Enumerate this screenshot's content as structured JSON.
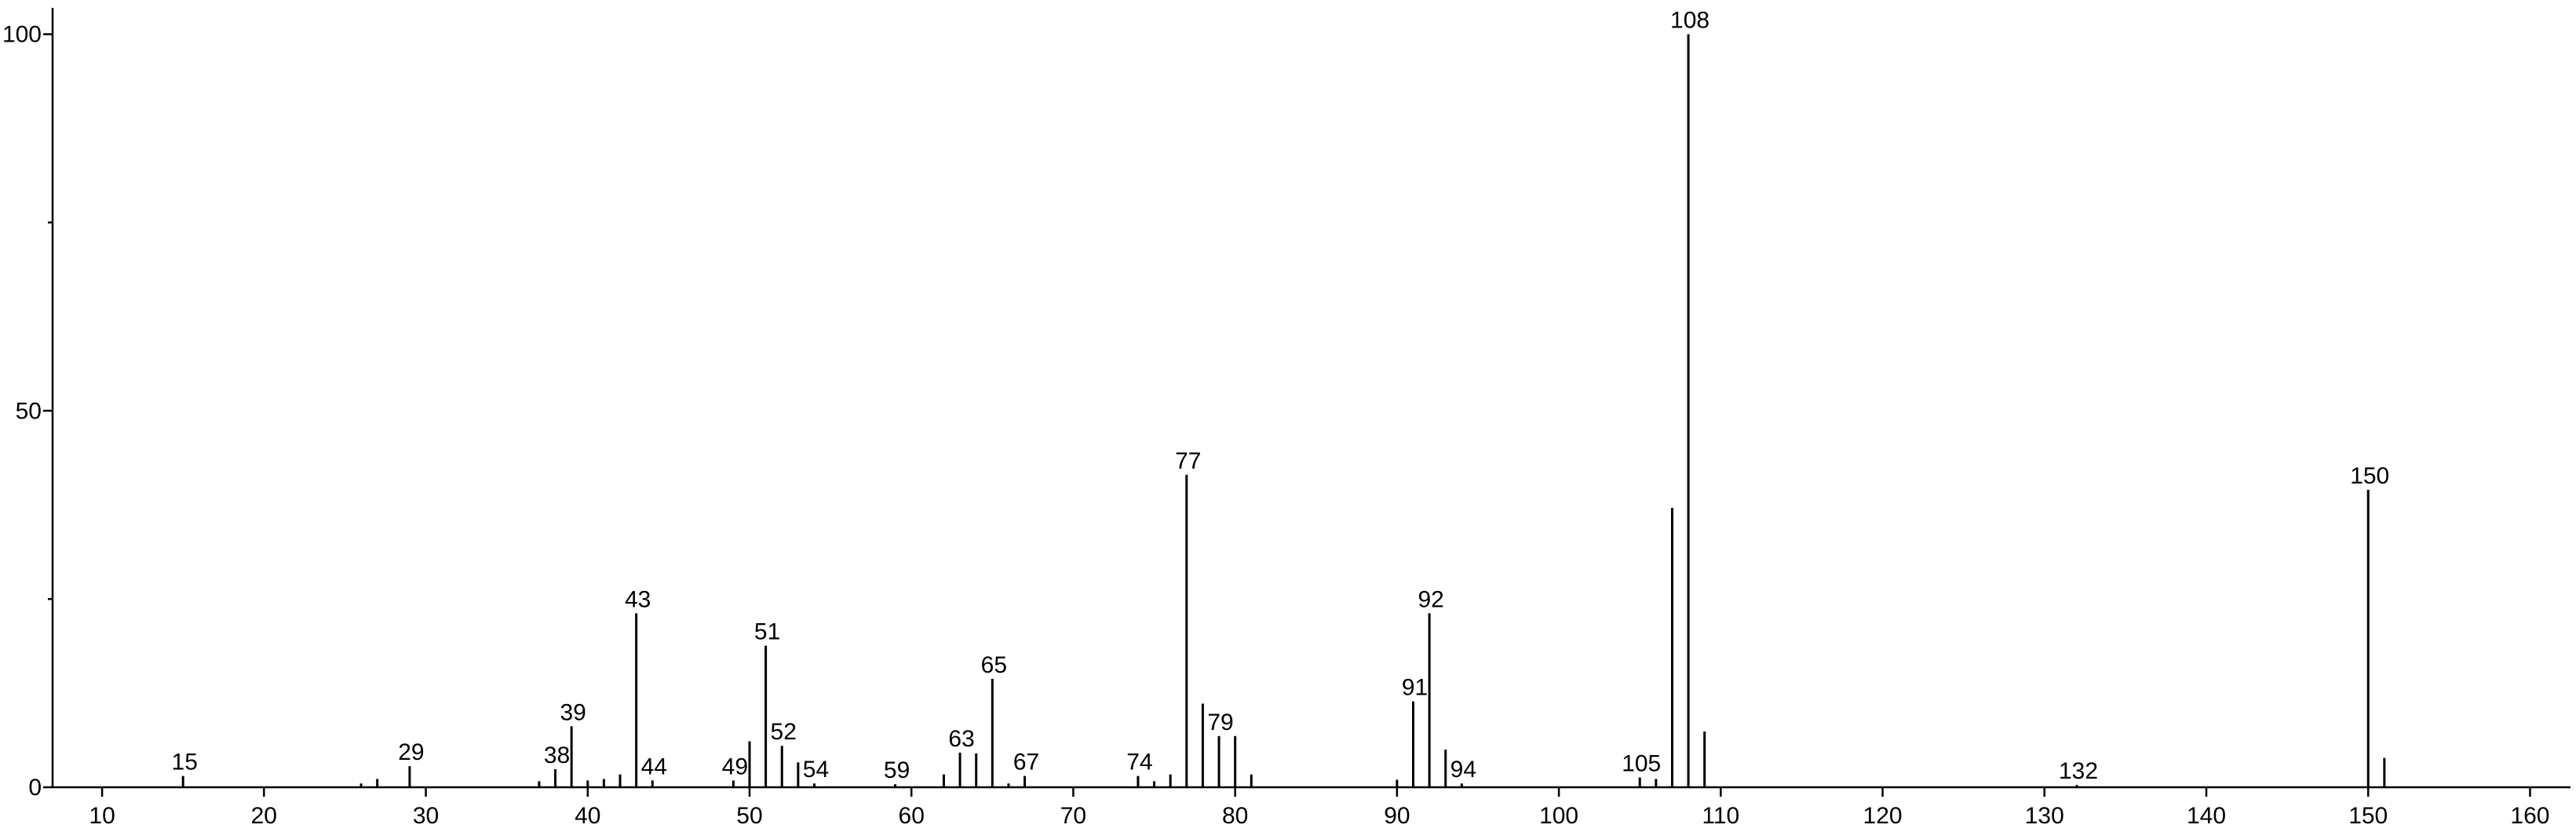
{
  "chart_data": {
    "type": "bar",
    "color": "#000000",
    "x": [
      15,
      26,
      27,
      29,
      37,
      38,
      39,
      40,
      41,
      42,
      43,
      44,
      49,
      50,
      51,
      52,
      53,
      54,
      59,
      62,
      63,
      64,
      65,
      66,
      67,
      74,
      75,
      76,
      77,
      78,
      79,
      80,
      81,
      90,
      91,
      92,
      93,
      94,
      105,
      106,
      107,
      108,
      109,
      132,
      150,
      151
    ],
    "values": [
      1.5,
      0.5,
      1.1,
      2.8,
      0.8,
      2.4,
      8.1,
      0.9,
      1.1,
      1.7,
      23.1,
      0.9,
      0.9,
      6.1,
      18.8,
      5.5,
      3.3,
      0.5,
      0.4,
      1.7,
      4.6,
      4.5,
      14.4,
      0.5,
      1.5,
      1.5,
      0.8,
      1.7,
      41.5,
      11.1,
      6.8,
      6.8,
      1.7,
      1.0,
      11.4,
      23.1,
      5.0,
      0.5,
      1.3,
      1.1,
      37.1,
      100,
      7.4,
      0.3,
      39.5,
      3.9
    ],
    "labels": [
      "15",
      null,
      null,
      "29",
      null,
      "38",
      "39",
      null,
      null,
      null,
      "43",
      "44",
      "49",
      null,
      "51",
      "52",
      null,
      "54",
      "59",
      null,
      "63",
      null,
      "65",
      null,
      "67",
      "74",
      null,
      null,
      "77",
      null,
      "79",
      null,
      null,
      null,
      "91",
      "92",
      null,
      "94",
      "105",
      null,
      null,
      "108",
      null,
      "132",
      "150",
      null
    ],
    "xlim": [
      6.94,
      162.5
    ],
    "ylim": [
      0,
      103.5
    ],
    "xticks": [
      10,
      20,
      30,
      40,
      50,
      60,
      70,
      80,
      90,
      100,
      110,
      120,
      130,
      140,
      150,
      160
    ],
    "yticks": [
      0,
      50,
      100
    ],
    "yminorticks": [
      25,
      75
    ],
    "grid": false
  }
}
